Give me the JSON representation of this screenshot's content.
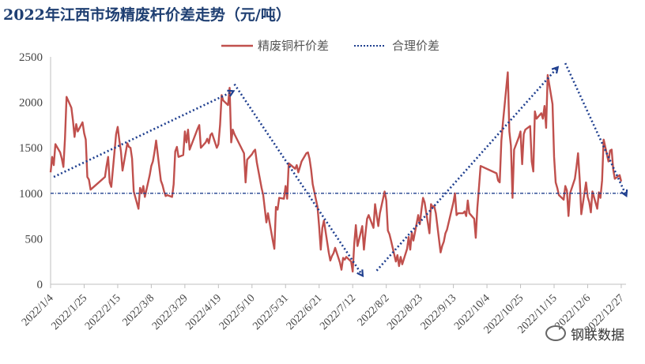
{
  "chart_data": {
    "type": "line",
    "title": "2022年江西市场精废杆价差走势（元/吨）",
    "xlabel": "",
    "ylabel": "",
    "ylim": [
      0,
      2500
    ],
    "yticks": [
      0,
      500,
      1000,
      1500,
      2000,
      2500
    ],
    "xtick_labels": [
      "2022/1/4",
      "2022/1/25",
      "2022/2/15",
      "2022/3/8",
      "2022/3/29",
      "2022/4/19",
      "2022/5/10",
      "2022/5/31",
      "2022/6/21",
      "2022/7/12",
      "2022/8/2",
      "2022/8/23",
      "2022/9/13",
      "2022/10/4",
      "2022/10/25",
      "2022/11/15",
      "2022/12/6",
      "2022/12/27"
    ],
    "x_range": [
      "2022-01-04",
      "2022-12-30"
    ],
    "legend_position": "top",
    "series": [
      {
        "name": "精废铜杆价差",
        "color": "#c0504d",
        "style": "solid",
        "points": [
          [
            "2022-01-04",
            1230
          ],
          [
            "2022-01-05",
            1400
          ],
          [
            "2022-01-06",
            1310
          ],
          [
            "2022-01-07",
            1540
          ],
          [
            "2022-01-10",
            1450
          ],
          [
            "2022-01-11",
            1380
          ],
          [
            "2022-01-12",
            1290
          ],
          [
            "2022-01-13",
            1600
          ],
          [
            "2022-01-14",
            2060
          ],
          [
            "2022-01-17",
            1940
          ],
          [
            "2022-01-18",
            1800
          ],
          [
            "2022-01-19",
            1620
          ],
          [
            "2022-01-20",
            1760
          ],
          [
            "2022-01-21",
            1680
          ],
          [
            "2022-01-24",
            1780
          ],
          [
            "2022-01-25",
            1660
          ],
          [
            "2022-01-26",
            1590
          ],
          [
            "2022-01-27",
            1180
          ],
          [
            "2022-01-28",
            1150
          ],
          [
            "2022-01-29",
            1040
          ],
          [
            "2022-02-07",
            1180
          ],
          [
            "2022-02-08",
            1300
          ],
          [
            "2022-02-09",
            1400
          ],
          [
            "2022-02-10",
            1120
          ],
          [
            "2022-02-11",
            1070
          ],
          [
            "2022-02-14",
            1650
          ],
          [
            "2022-02-15",
            1730
          ],
          [
            "2022-02-16",
            1580
          ],
          [
            "2022-02-17",
            1460
          ],
          [
            "2022-02-18",
            1250
          ],
          [
            "2022-02-21",
            1550
          ],
          [
            "2022-02-22",
            1510
          ],
          [
            "2022-02-23",
            1500
          ],
          [
            "2022-02-24",
            1380
          ],
          [
            "2022-02-25",
            1020
          ],
          [
            "2022-02-28",
            830
          ],
          [
            "2022-03-01",
            1060
          ],
          [
            "2022-03-02",
            1000
          ],
          [
            "2022-03-03",
            1080
          ],
          [
            "2022-03-04",
            960
          ],
          [
            "2022-03-07",
            1200
          ],
          [
            "2022-03-08",
            1300
          ],
          [
            "2022-03-09",
            1350
          ],
          [
            "2022-03-10",
            1450
          ],
          [
            "2022-03-11",
            1580
          ],
          [
            "2022-03-14",
            1140
          ],
          [
            "2022-03-15",
            1090
          ],
          [
            "2022-03-16",
            1020
          ],
          [
            "2022-03-17",
            970
          ],
          [
            "2022-03-18",
            980
          ],
          [
            "2022-03-21",
            960
          ],
          [
            "2022-03-22",
            1100
          ],
          [
            "2022-03-23",
            1460
          ],
          [
            "2022-03-24",
            1510
          ],
          [
            "2022-03-25",
            1400
          ],
          [
            "2022-03-28",
            1420
          ],
          [
            "2022-03-29",
            1680
          ],
          [
            "2022-03-30",
            1560
          ],
          [
            "2022-03-31",
            1700
          ],
          [
            "2022-04-01",
            1480
          ],
          [
            "2022-04-06",
            1710
          ],
          [
            "2022-04-07",
            1750
          ],
          [
            "2022-04-08",
            1500
          ],
          [
            "2022-04-11",
            1560
          ],
          [
            "2022-04-12",
            1600
          ],
          [
            "2022-04-13",
            1550
          ],
          [
            "2022-04-14",
            1640
          ],
          [
            "2022-04-15",
            1660
          ],
          [
            "2022-04-18",
            1500
          ],
          [
            "2022-04-19",
            1540
          ],
          [
            "2022-04-20",
            1750
          ],
          [
            "2022-04-21",
            2080
          ],
          [
            "2022-04-22",
            2020
          ],
          [
            "2022-04-25",
            1970
          ],
          [
            "2022-04-26",
            2160
          ],
          [
            "2022-04-27",
            1560
          ],
          [
            "2022-04-28",
            1700
          ],
          [
            "2022-04-29",
            1650
          ],
          [
            "2022-05-05",
            1440
          ],
          [
            "2022-05-06",
            1120
          ],
          [
            "2022-05-07",
            1370
          ],
          [
            "2022-05-10",
            1430
          ],
          [
            "2022-05-11",
            1460
          ],
          [
            "2022-05-12",
            1480
          ],
          [
            "2022-05-13",
            1340
          ],
          [
            "2022-05-16",
            1060
          ],
          [
            "2022-05-17",
            980
          ],
          [
            "2022-05-18",
            830
          ],
          [
            "2022-05-19",
            680
          ],
          [
            "2022-05-20",
            780
          ],
          [
            "2022-05-23",
            480
          ],
          [
            "2022-05-24",
            390
          ],
          [
            "2022-05-25",
            850
          ],
          [
            "2022-05-26",
            820
          ],
          [
            "2022-05-27",
            950
          ],
          [
            "2022-05-30",
            940
          ],
          [
            "2022-05-31",
            1080
          ],
          [
            "2022-06-01",
            940
          ],
          [
            "2022-06-02",
            1330
          ],
          [
            "2022-06-06",
            1270
          ],
          [
            "2022-06-07",
            1310
          ],
          [
            "2022-06-08",
            1230
          ],
          [
            "2022-06-09",
            1290
          ],
          [
            "2022-06-10",
            1350
          ],
          [
            "2022-06-13",
            1440
          ],
          [
            "2022-06-14",
            1450
          ],
          [
            "2022-06-15",
            1380
          ],
          [
            "2022-06-16",
            1260
          ],
          [
            "2022-06-17",
            1100
          ],
          [
            "2022-06-20",
            850
          ],
          [
            "2022-06-21",
            640
          ],
          [
            "2022-06-22",
            380
          ],
          [
            "2022-06-23",
            620
          ],
          [
            "2022-06-24",
            700
          ],
          [
            "2022-06-27",
            350
          ],
          [
            "2022-06-28",
            260
          ],
          [
            "2022-06-29",
            310
          ],
          [
            "2022-06-30",
            340
          ],
          [
            "2022-07-01",
            400
          ],
          [
            "2022-07-04",
            240
          ],
          [
            "2022-07-05",
            160
          ],
          [
            "2022-07-06",
            290
          ],
          [
            "2022-07-07",
            270
          ],
          [
            "2022-07-08",
            300
          ],
          [
            "2022-07-11",
            250
          ],
          [
            "2022-07-12",
            140
          ],
          [
            "2022-07-13",
            450
          ],
          [
            "2022-07-14",
            650
          ],
          [
            "2022-07-15",
            420
          ],
          [
            "2022-07-18",
            640
          ],
          [
            "2022-07-19",
            380
          ],
          [
            "2022-07-20",
            560
          ],
          [
            "2022-07-21",
            720
          ],
          [
            "2022-07-22",
            760
          ],
          [
            "2022-07-25",
            620
          ],
          [
            "2022-07-26",
            880
          ],
          [
            "2022-07-27",
            760
          ],
          [
            "2022-07-28",
            640
          ],
          [
            "2022-07-29",
            780
          ],
          [
            "2022-08-01",
            1020
          ],
          [
            "2022-08-02",
            920
          ],
          [
            "2022-08-03",
            590
          ],
          [
            "2022-08-04",
            550
          ],
          [
            "2022-08-05",
            480
          ],
          [
            "2022-08-08",
            250
          ],
          [
            "2022-08-09",
            320
          ],
          [
            "2022-08-10",
            200
          ],
          [
            "2022-08-11",
            300
          ],
          [
            "2022-08-12",
            220
          ],
          [
            "2022-08-15",
            390
          ],
          [
            "2022-08-16",
            520
          ],
          [
            "2022-08-17",
            380
          ],
          [
            "2022-08-18",
            570
          ],
          [
            "2022-08-19",
            480
          ],
          [
            "2022-08-22",
            760
          ],
          [
            "2022-08-23",
            660
          ],
          [
            "2022-08-24",
            820
          ],
          [
            "2022-08-25",
            950
          ],
          [
            "2022-08-26",
            900
          ],
          [
            "2022-08-29",
            560
          ],
          [
            "2022-08-30",
            880
          ],
          [
            "2022-08-31",
            850
          ],
          [
            "2022-09-01",
            860
          ],
          [
            "2022-09-02",
            780
          ],
          [
            "2022-09-05",
            350
          ],
          [
            "2022-09-06",
            420
          ],
          [
            "2022-09-07",
            470
          ],
          [
            "2022-09-08",
            560
          ],
          [
            "2022-09-09",
            600
          ],
          [
            "2022-09-13",
            900
          ],
          [
            "2022-09-14",
            1000
          ],
          [
            "2022-09-15",
            760
          ],
          [
            "2022-09-16",
            780
          ],
          [
            "2022-09-19",
            780
          ],
          [
            "2022-09-20",
            800
          ],
          [
            "2022-09-21",
            750
          ],
          [
            "2022-09-22",
            920
          ],
          [
            "2022-09-23",
            780
          ],
          [
            "2022-09-26",
            720
          ],
          [
            "2022-09-27",
            510
          ],
          [
            "2022-09-28",
            840
          ],
          [
            "2022-09-29",
            1070
          ],
          [
            "2022-09-30",
            1300
          ],
          [
            "2022-10-10",
            1220
          ],
          [
            "2022-10-11",
            1140
          ],
          [
            "2022-10-12",
            1120
          ],
          [
            "2022-10-13",
            1580
          ],
          [
            "2022-10-14",
            1780
          ],
          [
            "2022-10-17",
            2330
          ],
          [
            "2022-10-18",
            1680
          ],
          [
            "2022-10-19",
            1520
          ],
          [
            "2022-10-20",
            950
          ],
          [
            "2022-10-21",
            1480
          ],
          [
            "2022-10-24",
            1620
          ],
          [
            "2022-10-25",
            1680
          ],
          [
            "2022-10-26",
            1320
          ],
          [
            "2022-10-27",
            1650
          ],
          [
            "2022-10-28",
            1700
          ],
          [
            "2022-10-31",
            1740
          ],
          [
            "2022-11-01",
            1350
          ],
          [
            "2022-11-02",
            1240
          ],
          [
            "2022-11-03",
            1900
          ],
          [
            "2022-11-04",
            1820
          ],
          [
            "2022-11-07",
            1880
          ],
          [
            "2022-11-08",
            1820
          ],
          [
            "2022-11-09",
            1960
          ],
          [
            "2022-11-10",
            1720
          ],
          [
            "2022-11-11",
            2300
          ],
          [
            "2022-11-14",
            1980
          ],
          [
            "2022-11-15",
            1400
          ],
          [
            "2022-11-16",
            1120
          ],
          [
            "2022-11-17",
            1060
          ],
          [
            "2022-11-18",
            980
          ],
          [
            "2022-11-21",
            930
          ],
          [
            "2022-11-22",
            1080
          ],
          [
            "2022-11-23",
            1030
          ],
          [
            "2022-11-24",
            750
          ],
          [
            "2022-11-25",
            1000
          ],
          [
            "2022-11-28",
            1160
          ],
          [
            "2022-11-29",
            1290
          ],
          [
            "2022-11-30",
            1440
          ],
          [
            "2022-12-01",
            1150
          ],
          [
            "2022-12-02",
            770
          ],
          [
            "2022-12-05",
            1120
          ],
          [
            "2022-12-06",
            960
          ],
          [
            "2022-12-07",
            900
          ],
          [
            "2022-12-08",
            790
          ],
          [
            "2022-12-09",
            1020
          ],
          [
            "2022-12-12",
            830
          ],
          [
            "2022-12-13",
            1010
          ],
          [
            "2022-12-14",
            950
          ],
          [
            "2022-12-15",
            1140
          ],
          [
            "2022-12-16",
            1590
          ],
          [
            "2022-12-19",
            1350
          ],
          [
            "2022-12-20",
            1470
          ],
          [
            "2022-12-21",
            1480
          ],
          [
            "2022-12-22",
            1260
          ],
          [
            "2022-12-23",
            1160
          ],
          [
            "2022-12-26",
            1200
          ],
          [
            "2022-12-27",
            1130
          ]
        ]
      },
      {
        "name": "合理价差",
        "color": "#1f3f8f",
        "style": "dotted",
        "points": [
          [
            "2022-01-04",
            1000
          ],
          [
            "2022-12-30",
            1000
          ]
        ]
      }
    ],
    "annotations": [
      {
        "type": "dotted-arrow",
        "from": [
          "2022-01-06",
          1180
        ],
        "to": [
          "2022-04-28",
          2120
        ]
      },
      {
        "type": "dotted-arrow",
        "from": [
          "2022-04-29",
          2200
        ],
        "to": [
          "2022-07-18",
          100
        ]
      },
      {
        "type": "dotted-arrow",
        "from": [
          "2022-07-27",
          150
        ],
        "to": [
          "2022-11-17",
          2380
        ]
      },
      {
        "type": "dotted-arrow",
        "from": [
          "2022-11-22",
          2430
        ],
        "to": [
          "2022-12-30",
          980
        ]
      }
    ]
  },
  "watermark": "钢联数据"
}
